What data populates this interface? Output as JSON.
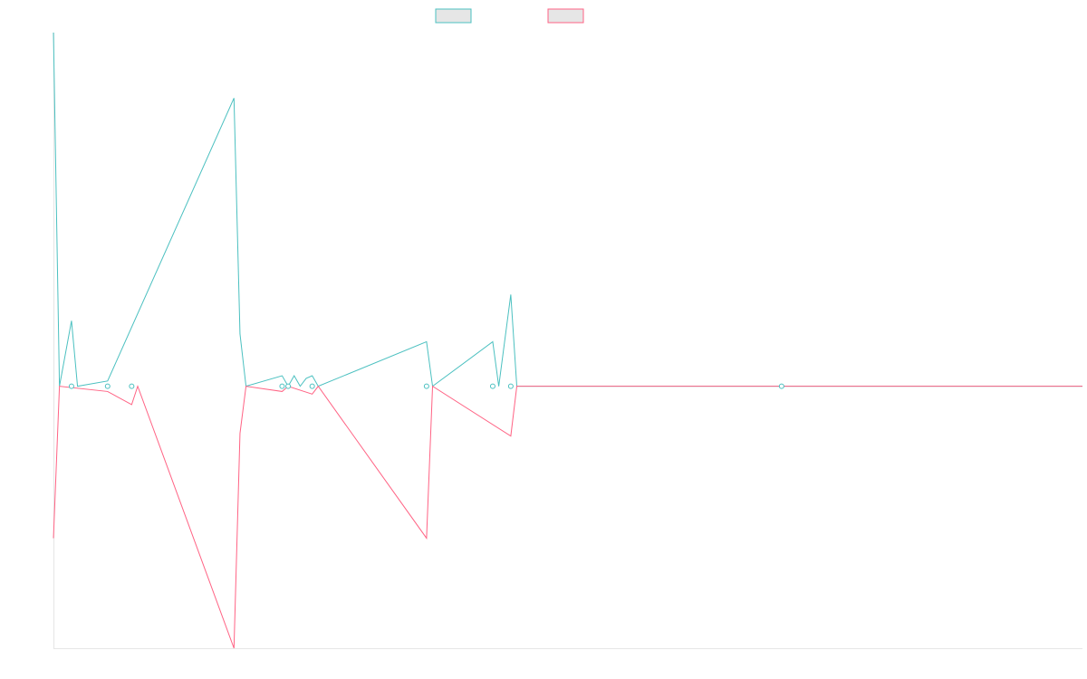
{
  "chart_data": {
    "type": "line",
    "title": "",
    "xlabel": "",
    "ylabel": "",
    "grid": false,
    "legend": "top-center",
    "x_count": 172,
    "ylim": [
      -1,
      1.35
    ],
    "series": [
      {
        "name": "",
        "color": "#4bc0c0",
        "points": [
          [
            0,
            1.35
          ],
          [
            1,
            0
          ],
          [
            3,
            0.25
          ],
          [
            4,
            0
          ],
          [
            9,
            0.02
          ],
          [
            30,
            1.1
          ],
          [
            31,
            0.2
          ],
          [
            32,
            0
          ],
          [
            38,
            0.04
          ],
          [
            39,
            0
          ],
          [
            40,
            0.04
          ],
          [
            41,
            0
          ],
          [
            42,
            0.03
          ],
          [
            43,
            0.04
          ],
          [
            44,
            0
          ],
          [
            62,
            0.17
          ],
          [
            63,
            0
          ],
          [
            73,
            0.17
          ],
          [
            74,
            0
          ],
          [
            76,
            0.35
          ],
          [
            77,
            0
          ],
          [
            171,
            0
          ]
        ]
      },
      {
        "name": "",
        "color": "#ff6384",
        "points": [
          [
            0,
            -0.58
          ],
          [
            1,
            0
          ],
          [
            9,
            -0.02
          ],
          [
            13,
            -0.07
          ],
          [
            14,
            0
          ],
          [
            30,
            -1
          ],
          [
            31,
            -0.18
          ],
          [
            32,
            0
          ],
          [
            38,
            -0.02
          ],
          [
            39,
            0
          ],
          [
            43,
            -0.03
          ],
          [
            44,
            0
          ],
          [
            62,
            -0.58
          ],
          [
            63,
            0
          ],
          [
            76,
            -0.19
          ],
          [
            77,
            0
          ],
          [
            171,
            0
          ]
        ]
      }
    ],
    "markers": [
      [
        3,
        0
      ],
      [
        9,
        0
      ],
      [
        13,
        0
      ],
      [
        38,
        0
      ],
      [
        39,
        0
      ],
      [
        43,
        0
      ],
      [
        62,
        0
      ],
      [
        73,
        0
      ],
      [
        76,
        0
      ],
      [
        121,
        0
      ]
    ]
  }
}
